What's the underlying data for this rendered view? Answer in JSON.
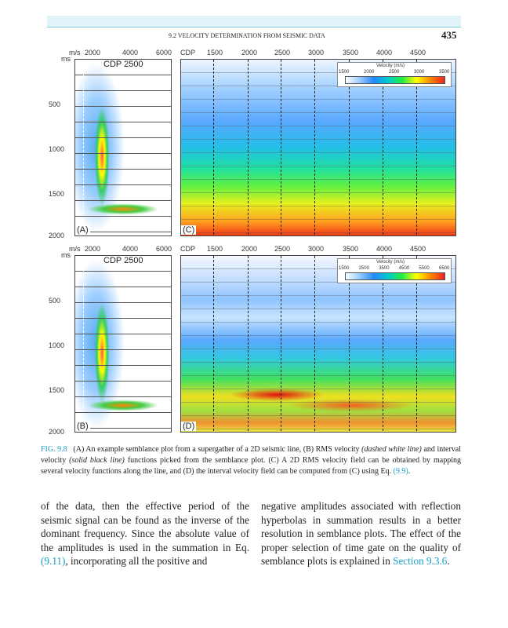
{
  "header": {
    "section": "9.2 VELOCITY DETERMINATION FROM SEISMIC DATA",
    "page": "435"
  },
  "figure": {
    "rows": [
      {
        "semblance_axis": [
          "m/s",
          "2000",
          "4000",
          "6000"
        ],
        "field_axis": [
          "CDP",
          "1500",
          "2000",
          "2500",
          "3000",
          "3500",
          "4000",
          "4500"
        ],
        "time_axis": [
          "ms",
          "500",
          "1000",
          "1500",
          "2000"
        ],
        "semblance_cdp": "CDP 2500",
        "semblance_label": "(A)",
        "field_label": "(C)",
        "colorbar_title": "Velocity (m/s)",
        "colorbar_ticks": [
          "1500",
          "2000",
          "2500",
          "3000",
          "3500"
        ]
      },
      {
        "semblance_axis": [
          "m/s",
          "2000",
          "4000",
          "6000"
        ],
        "field_axis": [
          "CDP",
          "1500",
          "2000",
          "2500",
          "3000",
          "3500",
          "4000",
          "4500"
        ],
        "time_axis": [
          "ms",
          "500",
          "1000",
          "1500",
          "2000"
        ],
        "semblance_cdp": "CDP 2500",
        "semblance_label": "(B)",
        "field_label": "(D)",
        "colorbar_title": "Velocity (m/s)",
        "colorbar_ticks": [
          "1500",
          "2500",
          "3500",
          "4500",
          "5500",
          "6500"
        ]
      }
    ]
  },
  "caption": {
    "label": "FIG. 9.8",
    "parts": [
      "(A) An example semblance plot from a supergather of a 2D seismic line, (B) RMS velocity ",
      "(dashed white line)",
      " and interval velocity ",
      "(solid black line)",
      " functions picked from the semblance plot. (C) A 2D RMS velocity field can be obtained by mapping several velocity functions along the line, and (D) the interval velocity field can be computed from (C) using Eq. ",
      "(9.9)",
      "."
    ]
  },
  "body": {
    "left": [
      "of the data, then the effective period of the seismic signal can be found as the inverse of the dominant frequency. Since the absolute value of the amplitudes is used in the summation in Eq. ",
      "(9.11)",
      ", incorporating all the positive and"
    ],
    "right": [
      "negative amplitudes associated with reflection hyperbolas in summation results in a better resolution in semblance plots. The effect of the proper selection of time gate on the quality of semblance plots is explained in ",
      "Section 9.3.6",
      "."
    ]
  }
}
